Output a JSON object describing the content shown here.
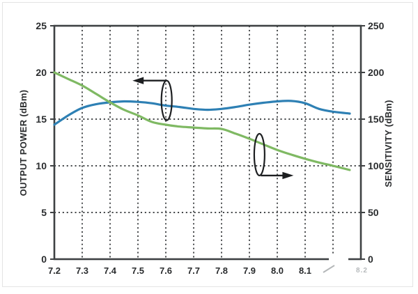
{
  "figure": {
    "background": "#ffffff",
    "frame_color": "#3e4143",
    "grid_color": "#45484a",
    "text_color": "#2a2c2e",
    "callout_color": "#1d1f21"
  },
  "chart_data": {
    "type": "line",
    "title": "",
    "grid": "dotted",
    "legend": "none",
    "x_axis": {
      "label": "",
      "tick_labels": [
        "7.2",
        "7.3",
        "7.4",
        "7.5",
        "7.6",
        "7.7",
        "7.8",
        "7.9",
        "8.0",
        "8.1"
      ],
      "tick_values": [
        7.2,
        7.3,
        7.4,
        7.5,
        7.6,
        7.7,
        7.8,
        7.9,
        8.0,
        8.1
      ],
      "grid_values": [
        7.3,
        7.4,
        7.5,
        7.6,
        7.7,
        7.8,
        7.9,
        8.0,
        8.1,
        8.2
      ],
      "range": [
        7.2,
        8.3
      ]
    },
    "left_axis": {
      "label": "OUTPUT POWER (dBm)",
      "tick_labels": [
        "0",
        "5",
        "10",
        "15",
        "20",
        "25"
      ],
      "tick_values": [
        0,
        5,
        10,
        15,
        20,
        25
      ],
      "grid_values": [
        5,
        10,
        15,
        20
      ],
      "range": [
        0,
        25
      ]
    },
    "right_axis": {
      "label": "SENSITIVITY (dBm)",
      "tick_labels": [
        "0",
        "50",
        "100",
        "150",
        "200",
        "250"
      ],
      "tick_values": [
        0,
        50,
        100,
        150,
        200,
        250
      ],
      "range": [
        0,
        250
      ]
    },
    "x": [
      7.2,
      7.25,
      7.3,
      7.35,
      7.4,
      7.45,
      7.5,
      7.55,
      7.6,
      7.65,
      7.7,
      7.75,
      7.8,
      7.85,
      7.9,
      7.95,
      8.0,
      8.05,
      8.1,
      8.15,
      8.2,
      8.26
    ],
    "series": [
      {
        "name": "OUTPUT POWER",
        "axis": "left",
        "color": "#2e80b4",
        "values": [
          14.4,
          15.4,
          16.2,
          16.6,
          16.8,
          16.9,
          16.85,
          16.7,
          16.45,
          16.3,
          16.1,
          16.0,
          16.1,
          16.3,
          16.55,
          16.75,
          16.9,
          16.95,
          16.7,
          16.1,
          15.8,
          15.6
        ]
      },
      {
        "name": "SENSITIVITY",
        "axis": "right",
        "color": "#7fb963",
        "values": [
          200,
          193,
          186,
          177,
          168,
          160,
          154,
          147,
          144,
          142,
          141,
          140,
          139.5,
          134.5,
          129,
          123,
          117,
          112,
          107.5,
          103.5,
          100,
          95.5
        ]
      }
    ],
    "annotations": [
      {
        "type": "ellipse-arrow",
        "series": "OUTPUT POWER",
        "x": 7.603,
        "y": 17.0,
        "axis": "left",
        "arrow": "left",
        "attach": "top"
      },
      {
        "type": "ellipse-arrow",
        "series": "SENSITIVITY",
        "x": 7.936,
        "y": 112,
        "axis": "right",
        "arrow": "right",
        "attach": "bottom"
      }
    ]
  },
  "watermark": {
    "slash": "/",
    "text": "8.2"
  }
}
